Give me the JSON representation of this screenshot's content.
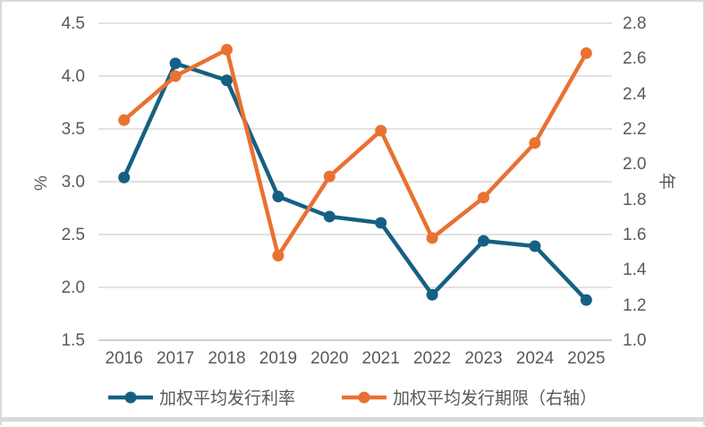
{
  "chart_data": {
    "type": "line",
    "title": "",
    "categories": [
      "2016",
      "2017",
      "2018",
      "2019",
      "2020",
      "2021",
      "2022",
      "2023",
      "2024",
      "2025"
    ],
    "series": [
      {
        "name": "加权平均发行利率",
        "axis": "left",
        "color": "#156082",
        "values": [
          3.04,
          4.12,
          3.96,
          2.86,
          2.67,
          2.61,
          1.93,
          2.44,
          2.39,
          1.88
        ]
      },
      {
        "name": "加权平均发行期限（右轴）",
        "axis": "right",
        "color": "#E97132",
        "values": [
          2.25,
          2.5,
          2.65,
          1.48,
          1.93,
          2.19,
          1.58,
          1.81,
          2.12,
          2.63
        ]
      }
    ],
    "left_axis": {
      "label": "%",
      "min": 1.5,
      "max": 4.5,
      "step": 0.5,
      "ticks": [
        "4.5",
        "4.0",
        "3.5",
        "3.0",
        "2.5",
        "2.0",
        "1.5"
      ]
    },
    "right_axis": {
      "label": "年",
      "min": 1.0,
      "max": 2.8,
      "step": 0.2,
      "ticks": [
        "2.8",
        "2.6",
        "2.4",
        "2.2",
        "2.0",
        "1.8",
        "1.6",
        "1.4",
        "1.2",
        "1.0"
      ]
    },
    "grid": true,
    "legend_position": "bottom"
  },
  "colors": {
    "gridline": "#d9d9d9",
    "axis_line": "#bfbfbf",
    "text": "#595959",
    "frame": "#d9d9d9"
  }
}
